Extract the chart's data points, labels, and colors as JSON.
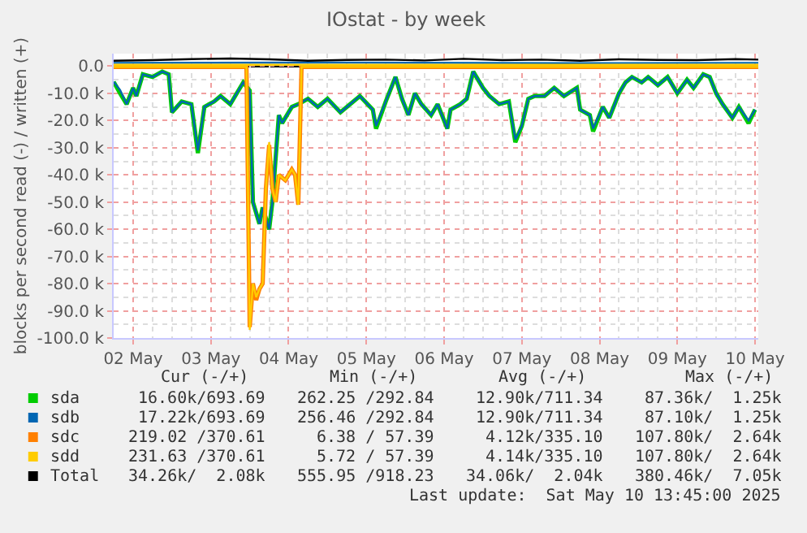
{
  "chart_data": {
    "type": "line",
    "title": "IOstat - by week",
    "ylabel": "blocks per second read (-) / written (+)",
    "x": [
      "2025-05-01T18:00",
      "2025-05-01T20:00",
      "2025-05-01T22:00",
      "2025-05-02T00:00",
      "2025-05-02T01:00",
      "2025-05-02T03:00",
      "2025-05-02T06:00",
      "2025-05-02T09:00",
      "2025-05-02T11:00",
      "2025-05-02T12:00",
      "2025-05-02T15:00",
      "2025-05-02T18:00",
      "2025-05-02T20:00",
      "2025-05-02T22:00",
      "2025-05-03T01:00",
      "2025-05-03T03:00",
      "2025-05-03T06:00",
      "2025-05-03T10:00",
      "2025-05-03T12:00",
      "2025-05-03T13:00",
      "2025-05-03T15:00",
      "2025-05-03T16:00",
      "2025-05-03T18:00",
      "2025-05-03T19:00",
      "2025-05-03T21:00",
      "2025-05-03T22:00",
      "2025-05-04T01:00",
      "2025-05-04T03:00",
      "2025-05-04T06:00",
      "2025-05-04T09:00",
      "2025-05-04T12:00",
      "2025-05-04T16:00",
      "2025-05-04T19:00",
      "2025-05-04T22:00",
      "2025-05-05T02:00",
      "2025-05-05T03:00",
      "2025-05-05T06:00",
      "2025-05-05T09:00",
      "2025-05-05T11:00",
      "2025-05-05T13:00",
      "2025-05-05T15:00",
      "2025-05-05T17:00",
      "2025-05-05T20:00",
      "2025-05-05T22:00",
      "2025-05-06T01:00",
      "2025-05-06T02:00",
      "2025-05-06T05:00",
      "2025-05-06T07:00",
      "2025-05-06T09:00",
      "2025-05-06T12:00",
      "2025-05-06T14:00",
      "2025-05-06T17:00",
      "2025-05-06T20:00",
      "2025-05-06T22:00",
      "2025-05-07T00:00",
      "2025-05-07T02:00",
      "2025-05-07T04:00",
      "2025-05-07T07:00",
      "2025-05-07T10:00",
      "2025-05-07T13:00",
      "2025-05-07T17:00",
      "2025-05-07T18:00",
      "2025-05-07T21:00",
      "2025-05-07T22:00",
      "2025-05-08T01:00",
      "2025-05-08T03:00",
      "2025-05-08T06:00",
      "2025-05-08T08:00",
      "2025-05-08T10:00",
      "2025-05-08T13:00",
      "2025-05-08T15:00",
      "2025-05-08T18:00",
      "2025-05-08T21:00",
      "2025-05-09T00:00",
      "2025-05-09T03:00",
      "2025-05-09T05:00",
      "2025-05-09T08:00",
      "2025-05-09T10:00",
      "2025-05-09T12:00",
      "2025-05-09T14:00",
      "2025-05-09T17:00",
      "2025-05-09T19:00",
      "2025-05-09T22:00",
      "2025-05-10T00:00"
    ],
    "series": [
      {
        "name": "sda",
        "color": "#00cc00",
        "values": [
          -5800,
          -10000,
          -14000,
          -8000,
          -11000,
          -3000,
          -4000,
          -2000,
          -3000,
          -17000,
          -13000,
          -14000,
          -32000,
          -15000,
          -13000,
          -11000,
          -14000,
          -6000,
          -9000,
          -50000,
          -58000,
          -52000,
          -60000,
          -50000,
          -18000,
          -21000,
          -15000,
          -14000,
          -12000,
          -15000,
          -12000,
          -17000,
          -14000,
          -11000,
          -16000,
          -23000,
          -13000,
          -4000,
          -12000,
          -18000,
          -10000,
          -14000,
          -18000,
          -14000,
          -23000,
          -16000,
          -14000,
          -12000,
          -2000,
          -8000,
          -11000,
          -14000,
          -13000,
          -28000,
          -22000,
          -12000,
          -11000,
          -11000,
          -8000,
          -11000,
          -8000,
          -16000,
          -18000,
          -24000,
          -15000,
          -19000,
          -10000,
          -6000,
          -4000,
          -6000,
          -4000,
          -7000,
          -4000,
          -10000,
          -5000,
          -8000,
          -3000,
          -4000,
          -10000,
          -14000,
          -19000,
          -15000,
          -21000,
          -16000
        ]
      },
      {
        "name": "sdb",
        "color": "#0066b3",
        "values": [
          -5800,
          -8800,
          -14000,
          -8000,
          -11000,
          -3000,
          -4000,
          -2000,
          -3000,
          -17000,
          -13000,
          -14000,
          -31000,
          -15000,
          -13000,
          -11000,
          -14000,
          -6000,
          -9000,
          -50000,
          -58000,
          -52000,
          -60000,
          -50000,
          -18000,
          -21000,
          -15000,
          -14000,
          -12000,
          -15000,
          -12000,
          -17000,
          -14000,
          -11000,
          -16000,
          -22000,
          -13000,
          -4000,
          -12000,
          -18000,
          -10000,
          -14000,
          -18000,
          -14000,
          -23000,
          -16000,
          -14000,
          -12000,
          -2000,
          -8000,
          -11000,
          -14000,
          -13000,
          -27000,
          -22000,
          -12000,
          -11000,
          -11000,
          -8000,
          -11000,
          -8000,
          -16000,
          -18000,
          -23000,
          -15000,
          -19000,
          -10000,
          -6000,
          -4000,
          -6000,
          -4000,
          -7000,
          -4000,
          -10000,
          -5000,
          -8000,
          -3000,
          -4000,
          -10000,
          -14000,
          -19000,
          -15000,
          -20000,
          -16000
        ]
      },
      {
        "name": "sdc",
        "color": "#ff8000",
        "x": [
          "2025-05-01T18:00",
          "2025-05-03T11:00",
          "2025-05-03T12:00",
          "2025-05-03T13:00",
          "2025-05-03T14:00",
          "2025-05-03T15:00",
          "2025-05-03T16:00",
          "2025-05-03T17:00",
          "2025-05-03T18:00",
          "2025-05-03T19:00",
          "2025-05-03T20:00",
          "2025-05-03T21:00",
          "2025-05-03T23:00",
          "2025-05-04T01:00",
          "2025-05-04T02:00",
          "2025-05-04T03:00",
          "2025-05-04T04:00",
          "2025-05-10T01:00"
        ],
        "values": [
          -300,
          -300,
          -96000,
          -80000,
          -86000,
          -82000,
          -80000,
          -45000,
          -29000,
          -45000,
          -50000,
          -40000,
          -42000,
          -38000,
          -40000,
          -51000,
          -300,
          -300
        ]
      },
      {
        "name": "sdd",
        "color": "#ffcc00",
        "x": [
          "2025-05-01T18:00",
          "2025-05-03T11:00",
          "2025-05-03T12:00",
          "2025-05-03T13:00",
          "2025-05-03T14:00",
          "2025-05-03T15:00",
          "2025-05-03T16:00",
          "2025-05-03T17:00",
          "2025-05-03T18:00",
          "2025-05-03T19:00",
          "2025-05-03T20:00",
          "2025-05-03T21:00",
          "2025-05-03T23:00",
          "2025-05-04T01:00",
          "2025-05-04T02:00",
          "2025-05-04T03:00",
          "2025-05-04T04:00",
          "2025-05-10T01:00"
        ],
        "values": [
          -300,
          -300,
          -97000,
          -80000,
          -85000,
          -82000,
          -80000,
          -45000,
          -28000,
          -45000,
          -50000,
          -40000,
          -42000,
          -38000,
          -40000,
          -51000,
          -300,
          -300
        ]
      },
      {
        "color": "#0066b3",
        "x": [
          "2025-05-01T18:00",
          "2025-05-04T12:00",
          "2025-05-07T12:00",
          "2025-05-10T01:00"
        ],
        "values": [
          1200,
          1300,
          1100,
          1200
        ]
      },
      {
        "color": "#ffcc00",
        "x": [
          "2025-05-01T18:00",
          "2025-05-10T01:00"
        ],
        "values": [
          500,
          500
        ]
      },
      {
        "name": "Total",
        "color": "#000000",
        "x": [
          "2025-05-01T18:00",
          "2025-05-02T06:00",
          "2025-05-02T18:00",
          "2025-05-03T06:00",
          "2025-05-03T18:00",
          "2025-05-04T06:00",
          "2025-05-04T18:00",
          "2025-05-05T06:00",
          "2025-05-05T18:00",
          "2025-05-06T06:00",
          "2025-05-06T18:00",
          "2025-05-07T06:00",
          "2025-05-07T18:00",
          "2025-05-08T06:00",
          "2025-05-08T18:00",
          "2025-05-09T06:00",
          "2025-05-09T18:00",
          "2025-05-10T01:00"
        ],
        "values": [
          2000,
          2200,
          2600,
          2800,
          2500,
          2000,
          2300,
          2400,
          2100,
          2700,
          2200,
          2400,
          2000,
          2500,
          2300,
          2200,
          2600,
          2400
        ]
      }
    ],
    "xlim": [
      "2025-05-01T18:00",
      "2025-05-10T01:00"
    ],
    "xticks": [
      {
        "value": "2025-05-02",
        "label": "02 May"
      },
      {
        "value": "2025-05-03",
        "label": "03 May"
      },
      {
        "value": "2025-05-04",
        "label": "04 May"
      },
      {
        "value": "2025-05-05",
        "label": "05 May"
      },
      {
        "value": "2025-05-06",
        "label": "06 May"
      },
      {
        "value": "2025-05-07",
        "label": "07 May"
      },
      {
        "value": "2025-05-08",
        "label": "08 May"
      },
      {
        "value": "2025-05-09",
        "label": "09 May"
      },
      {
        "value": "2025-05-10",
        "label": "10 May"
      }
    ],
    "ylim": [
      -100000,
      4600
    ],
    "yticks": [
      {
        "value": 0,
        "label": "0.0"
      },
      {
        "value": -10000,
        "label": "-10.0 k"
      },
      {
        "value": -20000,
        "label": "-20.0 k"
      },
      {
        "value": -30000,
        "label": "-30.0 k"
      },
      {
        "value": -40000,
        "label": "-40.0 k"
      },
      {
        "value": -50000,
        "label": "-50.0 k"
      },
      {
        "value": -60000,
        "label": "-60.0 k"
      },
      {
        "value": -70000,
        "label": "-70.0 k"
      },
      {
        "value": -80000,
        "label": "-80.0 k"
      },
      {
        "value": -90000,
        "label": "-90.0 k"
      },
      {
        "value": -100000,
        "label": "-100.0 k"
      }
    ],
    "ref_lines": [
      {
        "axis": "y",
        "value": 0,
        "color": "#000000"
      }
    ],
    "grid": true,
    "legend": "bottom",
    "marker": "none",
    "line_style": "solid",
    "annotations": [
      "Cur (-/+)",
      "Min (-/+)",
      "Avg (-/+)",
      "Max (-/+)",
      "16.60k/693.69",
      "262.25 /292.84",
      "12.90k/711.34",
      "87.36k/  1.25k",
      "17.22k/693.69",
      "256.46 /292.84",
      "12.90k/711.34",
      "87.10k/  1.25k",
      "219.02 /370.61",
      "6.38 / 57.39",
      "4.12k/335.10",
      "107.80k/  2.64k",
      "231.63 /370.61",
      "5.72 / 57.39",
      "4.14k/335.10",
      "107.80k/  2.64k",
      "34.26k/  2.08k",
      "555.95 /918.23",
      "34.06k/  2.04k",
      "380.46k/  7.05k",
      "Last update:  Sat May 10 13:45:00 2025"
    ]
  }
}
